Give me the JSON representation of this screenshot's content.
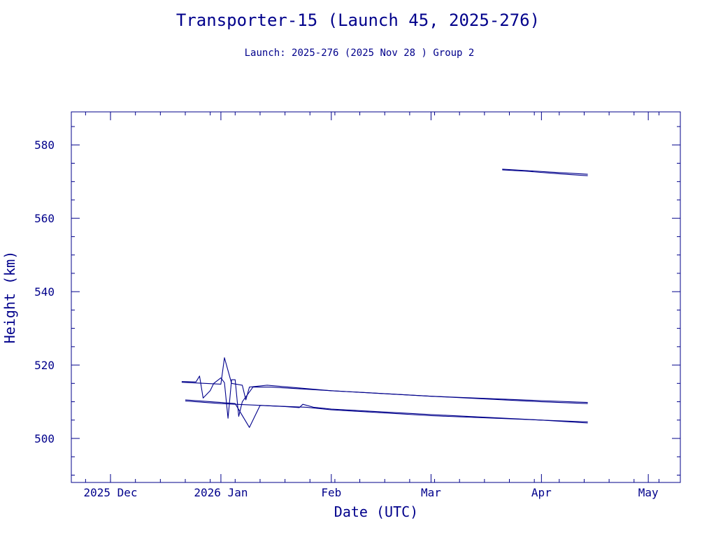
{
  "chart_data": {
    "type": "line",
    "title": "Transporter-15 (Launch 45, 2025-276)",
    "subtitle": "Launch: 2025-276  (2025 Nov 28 )  Group 2",
    "xlabel": "Date (UTC)",
    "ylabel": "Height (km)",
    "xlim": [
      "2025-11-20",
      "2026-05-10"
    ],
    "ylim": [
      488,
      589
    ],
    "grid": false,
    "line_color": "#00008b",
    "x_ticks": [
      {
        "date": "2025-12-01",
        "label": "2025 Dec"
      },
      {
        "date": "2026-01-01",
        "label": "2026 Jan"
      },
      {
        "date": "2026-02-01",
        "label": "Feb"
      },
      {
        "date": "2026-03-01",
        "label": "Mar"
      },
      {
        "date": "2026-04-01",
        "label": "Apr"
      },
      {
        "date": "2026-05-01",
        "label": "May"
      }
    ],
    "y_ticks": [
      {
        "value": 500,
        "label": "500"
      },
      {
        "value": 520,
        "label": "520"
      },
      {
        "value": 540,
        "label": "540"
      },
      {
        "value": 560,
        "label": "560"
      },
      {
        "value": 580,
        "label": "580"
      }
    ],
    "series": [
      {
        "points": [
          [
            "2025-12-21",
            515.5
          ],
          [
            "2025-12-25",
            515.4
          ],
          [
            "2025-12-26",
            517.0
          ],
          [
            "2025-12-27",
            511.0
          ],
          [
            "2025-12-29",
            513.0
          ],
          [
            "2025-12-30",
            515.0
          ],
          [
            "2026-01-01",
            516.5
          ],
          [
            "2026-01-02",
            515.2
          ],
          [
            "2026-01-03",
            505.5
          ],
          [
            "2026-01-04",
            516.0
          ],
          [
            "2026-01-05",
            516.0
          ],
          [
            "2026-01-06",
            506.0
          ],
          [
            "2026-01-07",
            510.0
          ],
          [
            "2026-01-10",
            514.0
          ],
          [
            "2026-01-15",
            514.0
          ],
          [
            "2026-02-01",
            513.0
          ],
          [
            "2026-03-01",
            511.5
          ],
          [
            "2026-04-01",
            510.0
          ],
          [
            "2026-04-14",
            509.5
          ]
        ]
      },
      {
        "points": [
          [
            "2025-12-21",
            515.3
          ],
          [
            "2026-01-01",
            514.8
          ],
          [
            "2026-01-02",
            522.0
          ],
          [
            "2026-01-04",
            515.0
          ],
          [
            "2026-01-07",
            514.5
          ],
          [
            "2026-01-08",
            510.5
          ],
          [
            "2026-01-09",
            514.0
          ],
          [
            "2026-01-14",
            514.5
          ],
          [
            "2026-02-01",
            513.0
          ],
          [
            "2026-03-01",
            511.5
          ],
          [
            "2026-04-01",
            510.3
          ],
          [
            "2026-04-14",
            509.8
          ]
        ]
      },
      {
        "points": [
          [
            "2025-12-22",
            510.5
          ],
          [
            "2026-01-01",
            509.8
          ],
          [
            "2026-01-05",
            509.5
          ],
          [
            "2026-01-09",
            503.0
          ],
          [
            "2026-01-12",
            509.0
          ],
          [
            "2026-01-25",
            508.5
          ],
          [
            "2026-02-01",
            507.8
          ],
          [
            "2026-03-01",
            506.2
          ],
          [
            "2026-04-01",
            505.0
          ],
          [
            "2026-04-14",
            504.5
          ]
        ]
      },
      {
        "points": [
          [
            "2025-12-22",
            510.2
          ],
          [
            "2026-01-01",
            509.5
          ],
          [
            "2026-01-19",
            508.7
          ],
          [
            "2026-01-23",
            508.4
          ],
          [
            "2026-01-24",
            509.3
          ],
          [
            "2026-01-27",
            508.5
          ],
          [
            "2026-02-01",
            508.0
          ],
          [
            "2026-03-01",
            506.5
          ],
          [
            "2026-04-01",
            505.0
          ],
          [
            "2026-04-14",
            504.2
          ]
        ]
      },
      {
        "points": [
          [
            "2026-03-21",
            573.4
          ],
          [
            "2026-03-28",
            573.0
          ],
          [
            "2026-04-05",
            572.5
          ],
          [
            "2026-04-14",
            572.0
          ]
        ]
      },
      {
        "points": [
          [
            "2026-03-21",
            573.2
          ],
          [
            "2026-03-28",
            572.8
          ],
          [
            "2026-04-05",
            572.2
          ],
          [
            "2026-04-14",
            571.6
          ]
        ]
      }
    ]
  }
}
